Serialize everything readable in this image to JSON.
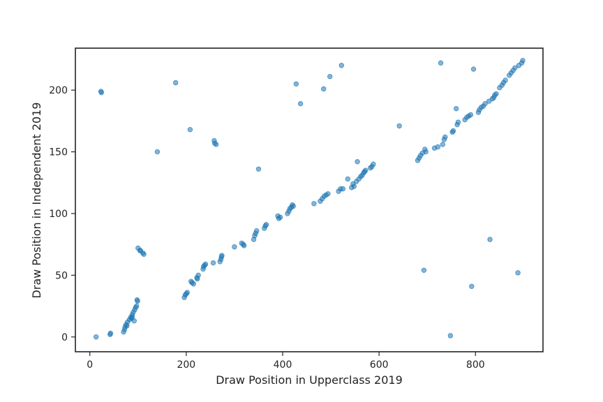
{
  "chart_data": {
    "type": "scatter",
    "xlabel": "Draw Position in Upperclass 2019",
    "ylabel": "Draw Position in Independent 2019",
    "xlim": [
      -30,
      940
    ],
    "ylim": [
      -12,
      234
    ],
    "xticks": [
      0,
      200,
      400,
      600,
      800
    ],
    "yticks": [
      0,
      50,
      100,
      150,
      200
    ],
    "grid": false,
    "marker_color": "#1f77b4",
    "marker_opacity": 0.55,
    "series": [
      {
        "points": [
          [
            13,
            0
          ],
          [
            23,
            199
          ],
          [
            24,
            198
          ],
          [
            42,
            2
          ],
          [
            43,
            3
          ],
          [
            70,
            4
          ],
          [
            72,
            6
          ],
          [
            73,
            8
          ],
          [
            75,
            10
          ],
          [
            77,
            9
          ],
          [
            78,
            12
          ],
          [
            82,
            14
          ],
          [
            85,
            16
          ],
          [
            88,
            18
          ],
          [
            90,
            20
          ],
          [
            93,
            22
          ],
          [
            95,
            24
          ],
          [
            97,
            25
          ],
          [
            98,
            30
          ],
          [
            99,
            29
          ],
          [
            92,
            13
          ],
          [
            88,
            16
          ],
          [
            86,
            15
          ],
          [
            100,
            72
          ],
          [
            105,
            70
          ],
          [
            104,
            70
          ],
          [
            110,
            68
          ],
          [
            112,
            67
          ],
          [
            140,
            150
          ],
          [
            178,
            206
          ],
          [
            208,
            168
          ],
          [
            258,
            159
          ],
          [
            259,
            157
          ],
          [
            262,
            156
          ],
          [
            196,
            32
          ],
          [
            198,
            34
          ],
          [
            200,
            35
          ],
          [
            202,
            36
          ],
          [
            210,
            45
          ],
          [
            212,
            44
          ],
          [
            215,
            43
          ],
          [
            222,
            48
          ],
          [
            225,
            50
          ],
          [
            223,
            47
          ],
          [
            235,
            55
          ],
          [
            236,
            57
          ],
          [
            238,
            58
          ],
          [
            240,
            59
          ],
          [
            256,
            60
          ],
          [
            270,
            61
          ],
          [
            272,
            63
          ],
          [
            273,
            65
          ],
          [
            274,
            66
          ],
          [
            300,
            73
          ],
          [
            315,
            76
          ],
          [
            318,
            75
          ],
          [
            320,
            74
          ],
          [
            340,
            79
          ],
          [
            342,
            82
          ],
          [
            344,
            84
          ],
          [
            346,
            86
          ],
          [
            350,
            136
          ],
          [
            362,
            88
          ],
          [
            364,
            90
          ],
          [
            366,
            91
          ],
          [
            390,
            98
          ],
          [
            392,
            96
          ],
          [
            395,
            97
          ],
          [
            410,
            100
          ],
          [
            413,
            102
          ],
          [
            415,
            104
          ],
          [
            418,
            105
          ],
          [
            420,
            107
          ],
          [
            422,
            106
          ],
          [
            428,
            205
          ],
          [
            437,
            189
          ],
          [
            485,
            201
          ],
          [
            498,
            211
          ],
          [
            522,
            220
          ],
          [
            465,
            108
          ],
          [
            478,
            110
          ],
          [
            482,
            112
          ],
          [
            486,
            114
          ],
          [
            490,
            115
          ],
          [
            494,
            116
          ],
          [
            516,
            118
          ],
          [
            520,
            120
          ],
          [
            525,
            120
          ],
          [
            535,
            128
          ],
          [
            543,
            121
          ],
          [
            546,
            124
          ],
          [
            548,
            122
          ],
          [
            553,
            126
          ],
          [
            555,
            142
          ],
          [
            558,
            128
          ],
          [
            562,
            130
          ],
          [
            565,
            131
          ],
          [
            568,
            133
          ],
          [
            570,
            134
          ],
          [
            572,
            135
          ],
          [
            582,
            137
          ],
          [
            585,
            138
          ],
          [
            588,
            140
          ],
          [
            642,
            171
          ],
          [
            680,
            143
          ],
          [
            683,
            145
          ],
          [
            686,
            147
          ],
          [
            690,
            149
          ],
          [
            695,
            152
          ],
          [
            697,
            150
          ],
          [
            693,
            54
          ],
          [
            715,
            153
          ],
          [
            722,
            154
          ],
          [
            728,
            222
          ],
          [
            732,
            156
          ],
          [
            735,
            160
          ],
          [
            737,
            162
          ],
          [
            748,
            1
          ],
          [
            752,
            166
          ],
          [
            754,
            167
          ],
          [
            760,
            185
          ],
          [
            762,
            172
          ],
          [
            764,
            174
          ],
          [
            778,
            176
          ],
          [
            782,
            178
          ],
          [
            786,
            179
          ],
          [
            790,
            180
          ],
          [
            792,
            41
          ],
          [
            796,
            217
          ],
          [
            806,
            182
          ],
          [
            808,
            184
          ],
          [
            812,
            186
          ],
          [
            816,
            187
          ],
          [
            820,
            189
          ],
          [
            828,
            191
          ],
          [
            830,
            79
          ],
          [
            835,
            193
          ],
          [
            838,
            194
          ],
          [
            840,
            196
          ],
          [
            843,
            197
          ],
          [
            850,
            202
          ],
          [
            855,
            204
          ],
          [
            858,
            206
          ],
          [
            862,
            208
          ],
          [
            870,
            212
          ],
          [
            874,
            214
          ],
          [
            878,
            216
          ],
          [
            882,
            218
          ],
          [
            888,
            52
          ],
          [
            890,
            220
          ],
          [
            896,
            222
          ],
          [
            898,
            224
          ]
        ]
      }
    ]
  }
}
